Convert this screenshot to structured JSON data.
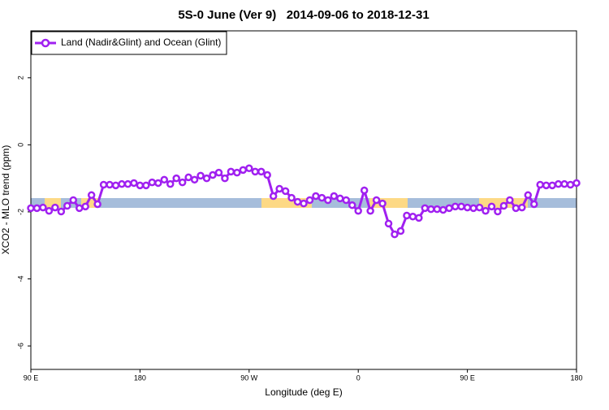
{
  "chart_data": {
    "type": "line",
    "title": "5S-0 June (Ver 9)   2014-09-06 to 2018-12-31",
    "x_label": "Longitude (deg E)",
    "y_label": "XCO2 - MLO trend (ppm)",
    "xlim": [
      90,
      540
    ],
    "ylim": [
      -6.7,
      3.4
    ],
    "xticks": [
      {
        "value": 90,
        "label": "90 E"
      },
      180,
      {
        "value": 270,
        "label": "90 W"
      },
      {
        "value": 360,
        "label": "0"
      },
      {
        "value": 450,
        "label": "90 E"
      },
      {
        "value": 540,
        "label": "180"
      }
    ],
    "yticks": [
      2,
      0,
      -2,
      -4,
      -6
    ],
    "legend": "top-left",
    "x": [
      90,
      95,
      100,
      105,
      110,
      115,
      120,
      125,
      130,
      135,
      140,
      145,
      150,
      155,
      160,
      165,
      170,
      175,
      180,
      185,
      190,
      195,
      200,
      205,
      210,
      215,
      220,
      225,
      230,
      235,
      240,
      245,
      250,
      255,
      260,
      265,
      270,
      275,
      280,
      285,
      290,
      295,
      300,
      305,
      310,
      315,
      320,
      325,
      330,
      335,
      340,
      345,
      350,
      355,
      360,
      365,
      370,
      375,
      380,
      385,
      390,
      395,
      400,
      405,
      410,
      415,
      420,
      425,
      430,
      435,
      440,
      445,
      450,
      455,
      460,
      465,
      470,
      475,
      480,
      485,
      490,
      495,
      500,
      505,
      510,
      515,
      520,
      525,
      530,
      535,
      540
    ],
    "series": [
      {
        "name": "Land (Nadir&Glint) and Ocean (Glint)",
        "color": "#a020f0",
        "values": [
          -1.89,
          -1.89,
          -1.87,
          -1.97,
          -1.87,
          -1.99,
          -1.82,
          -1.65,
          -1.89,
          -1.84,
          -1.5,
          -1.77,
          -1.19,
          -1.19,
          -1.21,
          -1.17,
          -1.17,
          -1.14,
          -1.21,
          -1.21,
          -1.12,
          -1.14,
          -1.04,
          -1.17,
          -1.0,
          -1.12,
          -0.97,
          -1.04,
          -0.92,
          -1.0,
          -0.9,
          -0.83,
          -1.0,
          -0.8,
          -0.83,
          -0.75,
          -0.7,
          -0.8,
          -0.8,
          -0.9,
          -1.53,
          -1.31,
          -1.38,
          -1.58,
          -1.7,
          -1.75,
          -1.65,
          -1.53,
          -1.58,
          -1.65,
          -1.53,
          -1.6,
          -1.65,
          -1.8,
          -1.97,
          -1.36,
          -1.97,
          -1.65,
          -1.75,
          -2.35,
          -2.67,
          -2.57,
          -2.11,
          -2.14,
          -2.18,
          -1.89,
          -1.92,
          -1.92,
          -1.94,
          -1.89,
          -1.84,
          -1.84,
          -1.87,
          -1.89,
          -1.87,
          -1.97,
          -1.84,
          -1.99,
          -1.82,
          -1.65,
          -1.89,
          -1.87,
          -1.5,
          -1.77,
          -1.19,
          -1.21,
          -1.21,
          -1.17,
          -1.17,
          -1.19,
          -1.14
        ]
      }
    ]
  }
}
